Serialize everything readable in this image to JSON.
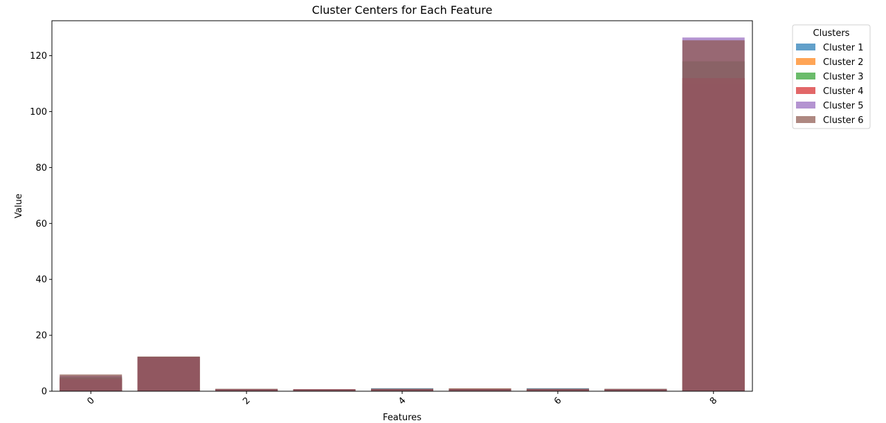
{
  "chart_data": {
    "type": "bar",
    "title": "Cluster Centers for Each Feature",
    "xlabel": "Features",
    "ylabel": "Value",
    "ylim": [
      0,
      132.5
    ],
    "xlim": [
      -0.5,
      8.5
    ],
    "categories": [
      0,
      1,
      2,
      3,
      4,
      5,
      6,
      7,
      8
    ],
    "x_ticks": [
      0,
      2,
      4,
      6,
      8
    ],
    "y_ticks": [
      0,
      20,
      40,
      60,
      80,
      100,
      120
    ],
    "grid": false,
    "legend_title": "Clusters",
    "legend_position": "outside-top-right",
    "bar_alpha": 0.7,
    "series": [
      {
        "name": "Cluster 1",
        "color": "#1f77b4",
        "values": [
          4.5,
          12.3,
          0.75,
          0.7,
          1.05,
          0.85,
          1.05,
          0.8,
          110.0
        ]
      },
      {
        "name": "Cluster 2",
        "color": "#ff7f0e",
        "values": [
          4.8,
          12.3,
          0.8,
          0.7,
          0.85,
          1.0,
          0.85,
          0.8,
          112.0
        ]
      },
      {
        "name": "Cluster 3",
        "color": "#2ca02c",
        "values": [
          5.0,
          12.3,
          0.8,
          0.7,
          0.9,
          0.95,
          0.9,
          0.8,
          118.0
        ]
      },
      {
        "name": "Cluster 4",
        "color": "#d62728",
        "values": [
          4.3,
          12.2,
          0.75,
          0.7,
          0.85,
          0.9,
          0.85,
          0.75,
          112.0
        ]
      },
      {
        "name": "Cluster 5",
        "color": "#9467bd",
        "values": [
          5.5,
          12.3,
          0.8,
          0.7,
          0.85,
          0.9,
          0.85,
          0.8,
          126.5
        ]
      },
      {
        "name": "Cluster 6",
        "color": "#8c564b",
        "values": [
          6.0,
          12.4,
          0.8,
          0.7,
          0.85,
          0.9,
          0.85,
          0.8,
          125.5
        ]
      }
    ]
  }
}
